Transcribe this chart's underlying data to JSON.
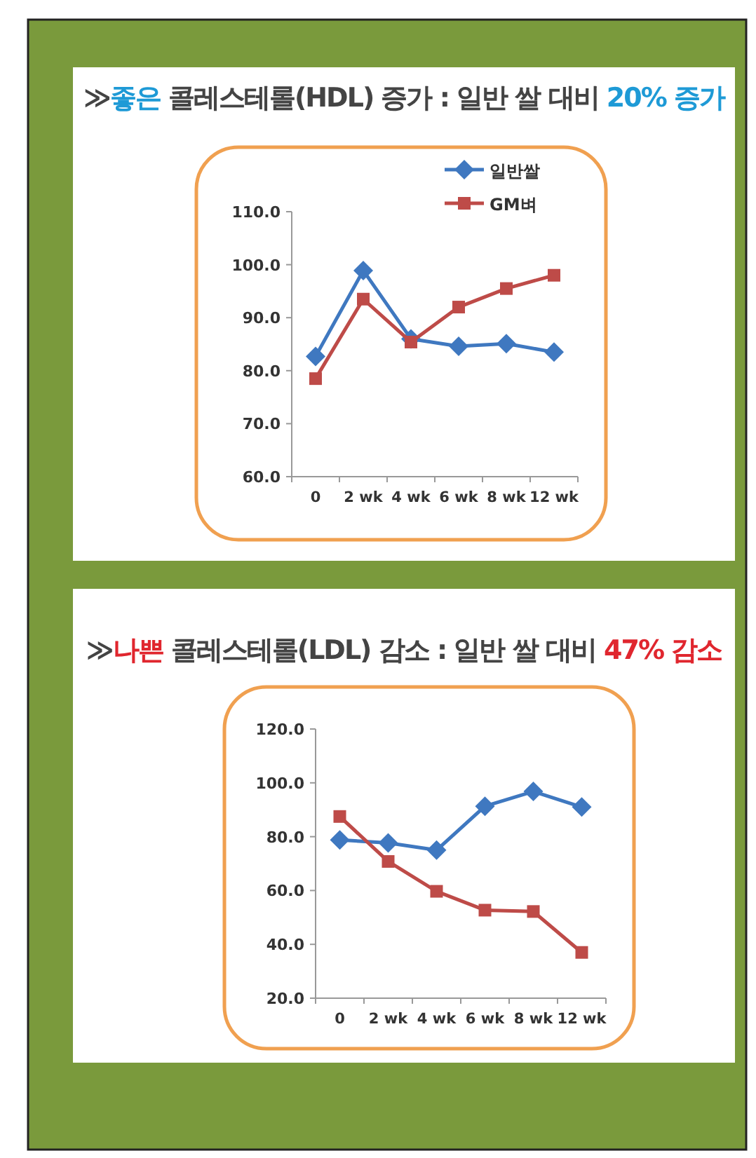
{
  "chart_data": [
    {
      "type": "line",
      "title": "≫**좋은** 콜레스테롤(HDL) 증가 : 일반 쌀 대비 **20% 증가**",
      "categories": [
        "0",
        "2 wk",
        "4 wk",
        "6 wk",
        "8 wk",
        "12 wk"
      ],
      "series": [
        {
          "name": "일반쌀",
          "color": "#3f78c0",
          "marker": "diamond",
          "values": [
            82.7,
            98.9,
            86,
            84.6,
            85.1,
            83.5
          ]
        },
        {
          "name": "GM벼",
          "color": "#be4b48",
          "marker": "square",
          "values": [
            78.5,
            93.5,
            85.4,
            92,
            95.5,
            98
          ]
        }
      ],
      "ylim": [
        60,
        110
      ],
      "yticks": [
        {
          "value": 60,
          "label": "60.0"
        },
        {
          "value": 70,
          "label": "70.0"
        },
        {
          "value": 80,
          "label": "80.0"
        },
        {
          "value": 90,
          "label": "90.0"
        },
        {
          "value": 100,
          "label": "100.0"
        },
        {
          "value": 110,
          "label": "110.0"
        }
      ],
      "grid": false,
      "legend": "top right"
    },
    {
      "type": "line",
      "title": "≫**나쁜** 콜레스테롤(LDL) 감소 : 일반 쌀 대비 **47% 감소**",
      "categories": [
        "0",
        "2 wk",
        "4 wk",
        "6 wk",
        "8 wk",
        "12 wk"
      ],
      "series": [
        {
          "color": "#3f78c0",
          "marker": "diamond",
          "values": [
            78.8,
            77.7,
            75,
            91.3,
            96.8,
            91
          ]
        },
        {
          "color": "#be4b48",
          "marker": "square",
          "values": [
            87.5,
            70.8,
            59.7,
            52.7,
            52.2,
            37
          ]
        }
      ],
      "ylim": [
        20,
        120
      ],
      "yticks": [
        {
          "value": 20,
          "label": "20.0"
        },
        {
          "value": 40,
          "label": "40.0"
        },
        {
          "value": 60,
          "label": "60.0"
        },
        {
          "value": 80,
          "label": "80.0"
        },
        {
          "value": 100,
          "label": "100.0"
        },
        {
          "value": 120,
          "label": "120.0"
        }
      ],
      "grid": false,
      "legend": false
    }
  ]
}
